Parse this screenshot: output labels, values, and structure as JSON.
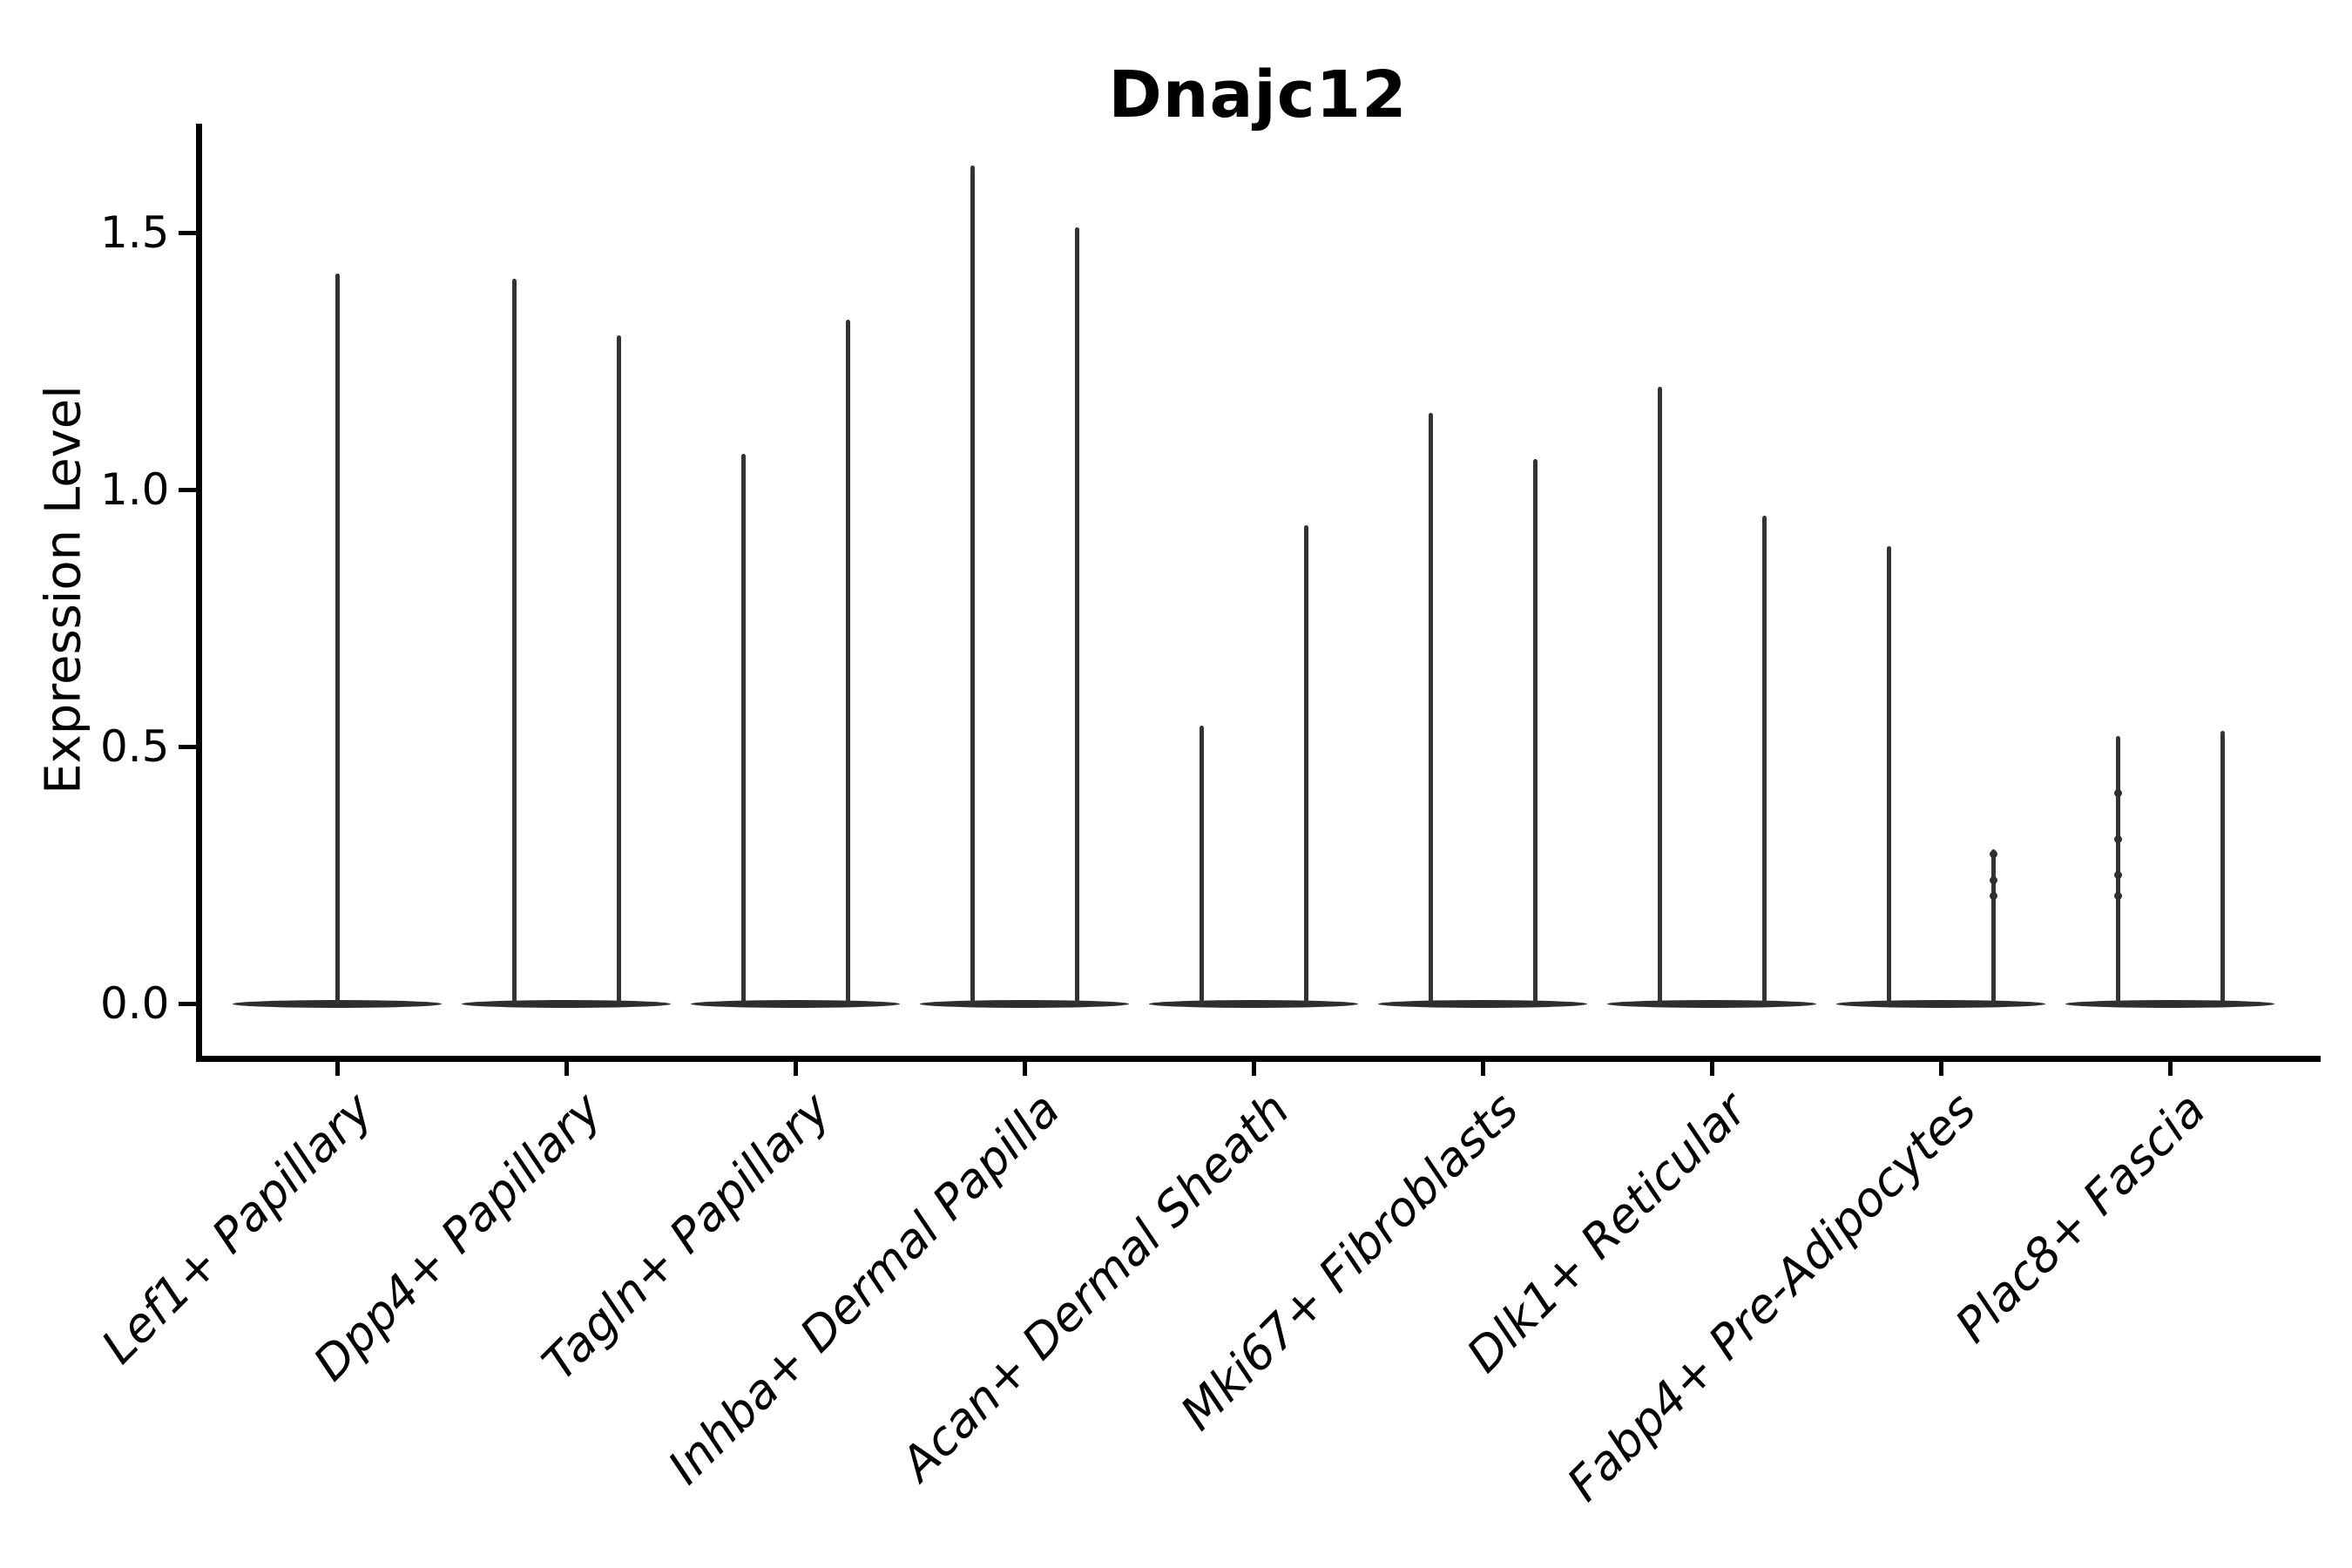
{
  "chart_data": {
    "type": "violin",
    "title": "Dnajc12",
    "xlabel": "",
    "ylabel": "Expression Level",
    "ylim": [
      0,
      1.71
    ],
    "yticks": [
      0.0,
      0.5,
      1.0,
      1.5
    ],
    "ytick_labels": [
      "0.0",
      "0.5",
      "1.0",
      "1.5"
    ],
    "grid": false,
    "legend": "none",
    "x_tick_label_rotation": 45,
    "x_tick_label_style": "italic",
    "violin_color": "#333333",
    "axis_color": "#000000",
    "description": "Seurat-style violin plot of Dnajc12 expression; violins collapse to a flat dark base at 0 with thin density spikes rising to the maximum expression level. Category 1 has a single centered spike; all other categories show two spikes flanking the category center.",
    "categories": [
      {
        "label": "Lef1+ Papillary",
        "spikes": [
          {
            "pos": 0,
            "max": 1.42,
            "dots": []
          }
        ]
      },
      {
        "label": "Dpp4+ Papillary",
        "spikes": [
          {
            "pos": -1,
            "max": 1.41,
            "dots": []
          },
          {
            "pos": 1,
            "max": 1.3,
            "dots": []
          }
        ]
      },
      {
        "label": "Tagln+ Papillary",
        "spikes": [
          {
            "pos": -1,
            "max": 1.07,
            "dots": []
          },
          {
            "pos": 1,
            "max": 1.33,
            "dots": []
          }
        ]
      },
      {
        "label": "Inhba+ Dermal Papilla",
        "spikes": [
          {
            "pos": -1,
            "max": 1.63,
            "dots": []
          },
          {
            "pos": 1,
            "max": 1.51,
            "dots": []
          }
        ]
      },
      {
        "label": "Acan+ Dermal Sheath",
        "spikes": [
          {
            "pos": -1,
            "max": 0.54,
            "dots": []
          },
          {
            "pos": 1,
            "max": 0.93,
            "dots": []
          }
        ]
      },
      {
        "label": "Mki67+ Fibroblasts",
        "spikes": [
          {
            "pos": -1,
            "max": 1.15,
            "dots": []
          },
          {
            "pos": 1,
            "max": 1.06,
            "dots": []
          }
        ]
      },
      {
        "label": "Dlk1+ Reticular",
        "spikes": [
          {
            "pos": -1,
            "max": 1.2,
            "dots": []
          },
          {
            "pos": 1,
            "max": 0.95,
            "dots": []
          }
        ]
      },
      {
        "label": "Fabp4+ Pre-Adipocytes",
        "spikes": [
          {
            "pos": -1,
            "max": 0.89,
            "dots": []
          },
          {
            "pos": 1,
            "max": 0.3,
            "dots": [
              0.29,
              0.24,
              0.21
            ]
          }
        ]
      },
      {
        "label": "Plac8+ Fascia",
        "spikes": [
          {
            "pos": -1,
            "max": 0.52,
            "dots": [
              0.41,
              0.32,
              0.25,
              0.21
            ]
          },
          {
            "pos": 1,
            "max": 0.53,
            "dots": []
          }
        ]
      }
    ]
  }
}
